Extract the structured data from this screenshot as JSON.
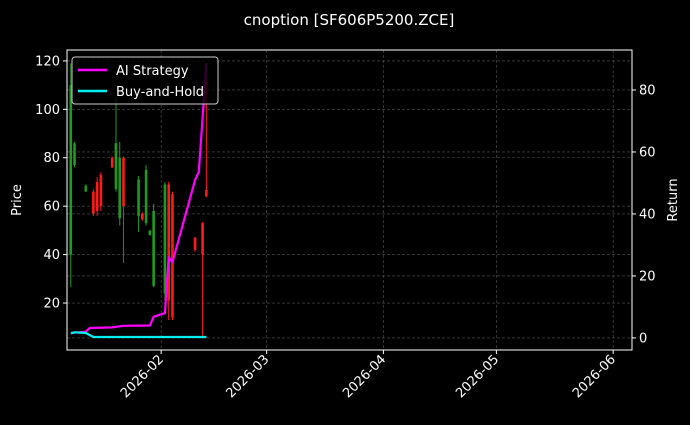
{
  "chart_data": {
    "type": "candlestick+line",
    "title": "cnoption [SF606P5200.ZCE]",
    "ylabel_left": "Price",
    "ylabel_right": "Return",
    "xlim": [
      "2026-01-07",
      "2026-06-06"
    ],
    "ylim_left": [
      0.6,
      124.5
    ],
    "ylim_right": [
      -3.9,
      92.9
    ],
    "x_ticks": [
      "2026-02",
      "2026-03",
      "2026-04",
      "2026-05",
      "2026-06"
    ],
    "x_tick_dates": [
      "2026-02-01",
      "2026-03-01",
      "2026-04-01",
      "2026-05-01",
      "2026-06-01"
    ],
    "y_ticks_left": [
      20,
      40,
      60,
      80,
      100,
      120
    ],
    "y_ticks_right": [
      0,
      20,
      40,
      60,
      80
    ],
    "grid": true,
    "legend_placement": "top-left",
    "colors": {
      "up": "#1f9a1f",
      "down": "#ff1a1a",
      "ai": "#ff00ff",
      "bh": "#00f0f0",
      "background": "#000000"
    },
    "candles": [
      {
        "date": "2026-01-08",
        "o": 40,
        "h": 119,
        "l": 26.6,
        "c": 110
      },
      {
        "date": "2026-01-09",
        "o": 77,
        "h": 86.5,
        "l": 76,
        "c": 86
      },
      {
        "date": "2026-01-12",
        "o": 66,
        "h": 69,
        "l": 66,
        "c": 68.5
      },
      {
        "date": "2026-01-14",
        "o": 66,
        "h": 67,
        "l": 56,
        "c": 57
      },
      {
        "date": "2026-01-15",
        "o": 70,
        "h": 72,
        "l": 56,
        "c": 58
      },
      {
        "date": "2026-01-16",
        "o": 73,
        "h": 74,
        "l": 58,
        "c": 60
      },
      {
        "date": "2026-01-19",
        "o": 80,
        "h": 80.5,
        "l": 75.8,
        "c": 76
      },
      {
        "date": "2026-01-20",
        "o": 67,
        "h": 105,
        "l": 66,
        "c": 86
      },
      {
        "date": "2026-01-21",
        "o": 55,
        "h": 86.5,
        "l": 52,
        "c": 80
      },
      {
        "date": "2026-01-22",
        "o": 80,
        "h": 80.5,
        "l": 36.5,
        "c": 60
      },
      {
        "date": "2026-01-26",
        "o": 56,
        "h": 72.5,
        "l": 49.3,
        "c": 71
      },
      {
        "date": "2026-01-27",
        "o": 57,
        "h": 57.5,
        "l": 54,
        "c": 54.5
      },
      {
        "date": "2026-01-28",
        "o": 53,
        "h": 77,
        "l": 52,
        "c": 75
      },
      {
        "date": "2026-01-29",
        "o": 48,
        "h": 50,
        "l": 48,
        "c": 50
      },
      {
        "date": "2026-01-30",
        "o": 27,
        "h": 61,
        "l": 26.6,
        "c": 58
      },
      {
        "date": "2026-02-02",
        "o": 24,
        "h": 70,
        "l": 21,
        "c": 69
      },
      {
        "date": "2026-02-03",
        "o": 69,
        "h": 70,
        "l": 13,
        "c": 21
      },
      {
        "date": "2026-02-04",
        "o": 65,
        "h": 66,
        "l": 13,
        "c": 14
      },
      {
        "date": "2026-02-10",
        "o": 47,
        "h": 47.3,
        "l": 41,
        "c": 42
      },
      {
        "date": "2026-02-12",
        "o": 53,
        "h": 53.5,
        "l": 6,
        "c": 40
      },
      {
        "date": "2026-02-13",
        "o": 66.7,
        "h": 119,
        "l": 63.8,
        "c": 64
      }
    ],
    "series": [
      {
        "name": "AI Strategy",
        "dates": [
          "2026-01-08",
          "2026-01-12",
          "2026-01-13",
          "2026-01-19",
          "2026-01-22",
          "2026-01-29",
          "2026-01-30",
          "2026-02-02",
          "2026-02-03",
          "2026-02-04",
          "2026-02-10",
          "2026-02-11",
          "2026-02-13"
        ],
        "values": [
          1.6,
          2.0,
          3.2,
          3.4,
          3.9,
          4.0,
          6.8,
          8.0,
          26.0,
          24.5,
          51.0,
          53.5,
          88.7
        ]
      },
      {
        "name": "Buy-and-Hold",
        "dates": [
          "2026-01-08",
          "2026-01-09",
          "2026-01-12",
          "2026-01-14",
          "2026-02-13"
        ],
        "values": [
          1.5,
          1.8,
          1.6,
          0.3,
          0.3
        ]
      }
    ]
  }
}
